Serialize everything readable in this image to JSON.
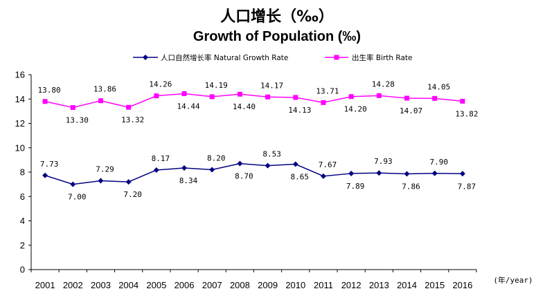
{
  "title_cn": "人口增长（‰）",
  "title_en": "Growth of Population (‰)",
  "chart_data": {
    "type": "line",
    "x_unit": "(年/year)",
    "categories": [
      "2001",
      "2002",
      "2003",
      "2004",
      "2005",
      "2006",
      "2007",
      "2008",
      "2009",
      "2010",
      "2011",
      "2012",
      "2013",
      "2014",
      "2015",
      "2016"
    ],
    "ylim": [
      0,
      16
    ],
    "yticks": [
      "0",
      "2",
      "4",
      "6",
      "8",
      "10",
      "12",
      "14",
      "16"
    ],
    "grid": false,
    "legend_position": "top",
    "series": [
      {
        "name": "人口自然增长率 Natural Growth Rate",
        "color": "#000080",
        "marker": "diamond",
        "values": [
          7.73,
          7.0,
          7.29,
          7.2,
          8.17,
          8.34,
          8.2,
          8.7,
          8.53,
          8.65,
          7.67,
          7.89,
          7.93,
          7.86,
          7.9,
          7.87
        ],
        "labels": [
          "7.73",
          "7.00",
          "7.29",
          "7.20",
          "8.17",
          "8.34",
          "8.20",
          "8.70",
          "8.53",
          "8.65",
          "7.67",
          "7.89",
          "7.93",
          "7.86",
          "7.90",
          "7.87"
        ]
      },
      {
        "name": "出生率 Birth Rate",
        "color": "#ff00ff",
        "marker": "square",
        "values": [
          13.8,
          13.3,
          13.86,
          13.32,
          14.26,
          14.44,
          14.19,
          14.4,
          14.17,
          14.13,
          13.71,
          14.2,
          14.28,
          14.07,
          14.05,
          13.82
        ],
        "labels": [
          "13.80",
          "13.30",
          "13.86",
          "13.32",
          "14.26",
          "14.44",
          "14.19",
          "14.40",
          "14.17",
          "14.13",
          "13.71",
          "14.20",
          "14.28",
          "14.07",
          "14.05",
          "13.82"
        ]
      }
    ]
  }
}
